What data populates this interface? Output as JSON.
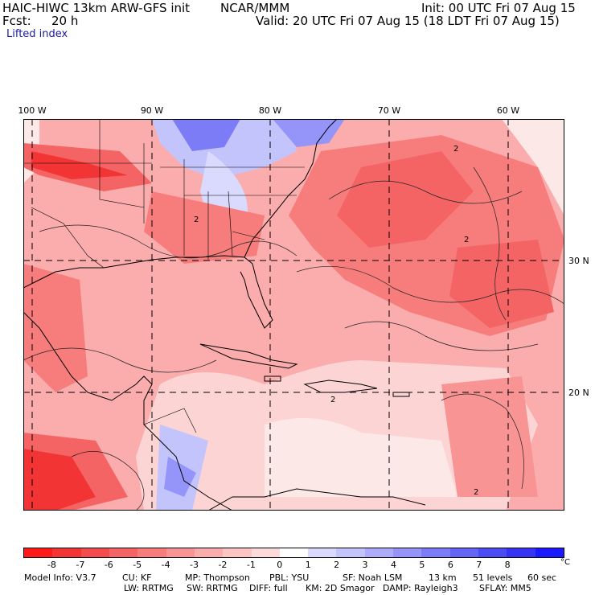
{
  "header": {
    "model": "HAIC-HIWC 13km ARW-GFS init",
    "org": "NCAR/MMM",
    "init": "Init: 00 UTC Fri 07 Aug 15",
    "fcst_label": "Fcst:",
    "fcst_value": "20 h",
    "valid": "Valid: 20 UTC Fri 07 Aug 15 (18 LDT Fri 07 Aug 15)",
    "field": "Lifted index"
  },
  "map": {
    "lon_labels": [
      "100 W",
      "90 W",
      "80 W",
      "70 W",
      "60 W"
    ],
    "lat_labels": [
      "30 N",
      "20 N"
    ],
    "contour_label": "2"
  },
  "colorbar": {
    "colors": [
      "#ff1a1a",
      "#f23434",
      "#f44c4c",
      "#f56464",
      "#f77c7c",
      "#f99494",
      "#fbacac",
      "#fdc4c4",
      "#fedada",
      "#ffffff",
      "#dadaff",
      "#c4c4fd",
      "#acacfb",
      "#9494f9",
      "#7c7cf7",
      "#6464f5",
      "#4c4cf4",
      "#3434f2",
      "#1a1aff"
    ],
    "ticks": [
      "-8",
      "-7",
      "-6",
      "-5",
      "-4",
      "-3",
      "-2",
      "-1",
      "0",
      "1",
      "2",
      "3",
      "4",
      "5",
      "6",
      "7",
      "8"
    ],
    "unit": "°C"
  },
  "footer": {
    "line1": [
      "Model Info: V3.7",
      "CU: KF",
      "MP: Thompson",
      "PBL: YSU",
      "SF: Noah LSM",
      "13 km",
      "51 levels",
      "60 sec"
    ],
    "line2": [
      "LW: RRTMG",
      "SW: RRTMG",
      "DIFF: full",
      "KM: 2D Smagor",
      "DAMP: Rayleigh3",
      "SFLAY: MM5"
    ]
  }
}
